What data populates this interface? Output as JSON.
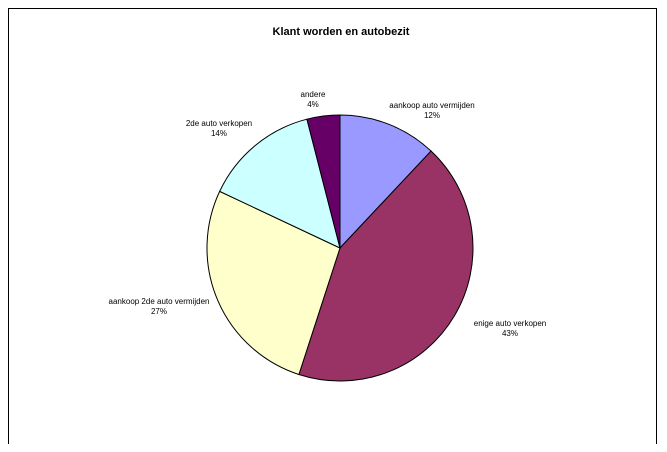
{
  "chart_data": {
    "type": "pie",
    "title": "Klant worden en autobezit",
    "slices": [
      {
        "label": "aankoop auto vermijden",
        "value": 12,
        "pct": "12%",
        "color": "#9999ff"
      },
      {
        "label": "enige auto verkopen",
        "value": 43,
        "pct": "43%",
        "color": "#993366"
      },
      {
        "label": "aankoop 2de auto vermijden",
        "value": 27,
        "pct": "27%",
        "color": "#ffffcc"
      },
      {
        "label": "2de auto verkopen",
        "value": 14,
        "pct": "14%",
        "color": "#ccffff"
      },
      {
        "label": "andere",
        "value": 4,
        "pct": "4%",
        "color": "#660066"
      }
    ],
    "start_angle_deg": 0,
    "direction": "clockwise",
    "legend": "none",
    "data_labels": "outside"
  }
}
